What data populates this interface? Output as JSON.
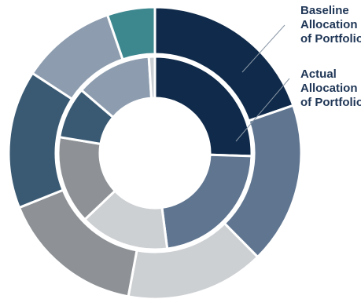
{
  "chart_data": {
    "type": "pie",
    "variant": "nested-donut",
    "title": "",
    "legend": "right",
    "colors": [
      "#0f2a4a",
      "#5f7590",
      "#cdd0d3",
      "#8e9296",
      "#3a5a73",
      "#8d9daf",
      "#3d878f",
      "#c9ced3"
    ],
    "series": [
      {
        "name": "Baseline Allocation of Portfolio",
        "ring": "outer",
        "values": [
          0.206,
          0.187,
          0.16,
          0.167,
          0.16,
          0.11,
          0.055
        ],
        "color_index": [
          0,
          1,
          2,
          3,
          4,
          5,
          6
        ]
      },
      {
        "name": "Actual Allocation of Portfolio",
        "ring": "inner",
        "values": [
          0.251,
          0.221,
          0.147,
          0.145,
          0.085,
          0.125,
          0.01
        ],
        "color_index": [
          0,
          1,
          2,
          3,
          4,
          5,
          7
        ]
      }
    ]
  },
  "legend": {
    "outer": [
      "Baseline",
      "Allocation",
      "of Portfolio"
    ],
    "inner": [
      "Actual",
      "Allocation",
      "of Portfolio"
    ]
  }
}
